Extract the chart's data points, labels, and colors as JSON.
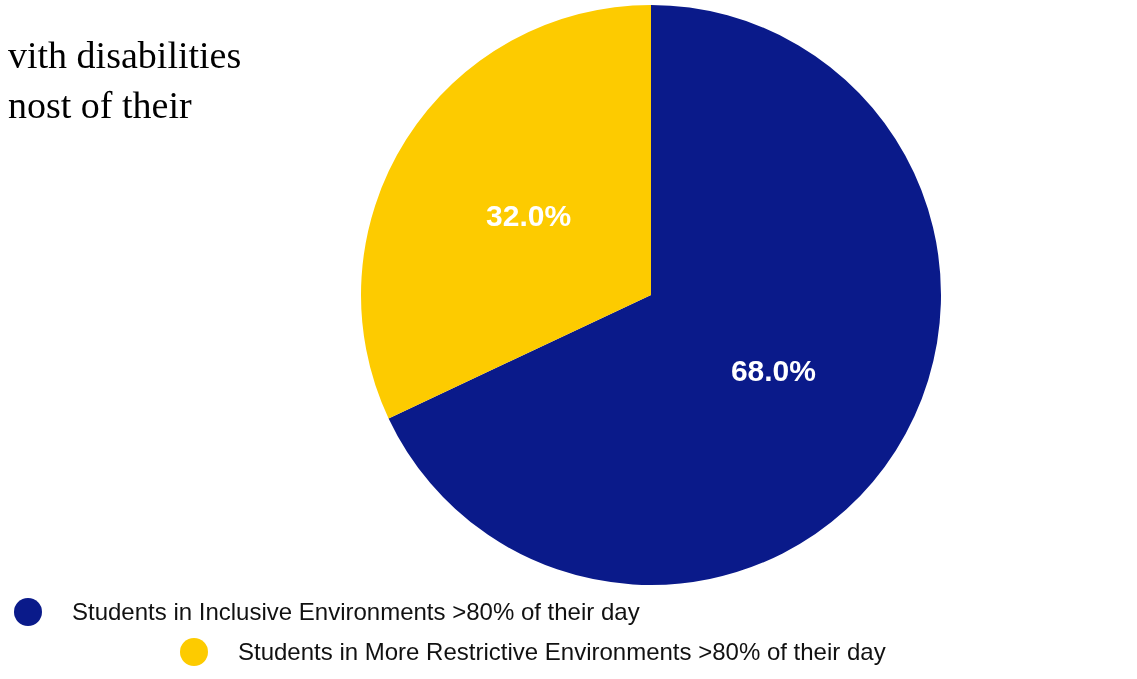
{
  "chart_data": {
    "type": "pie",
    "categories": [
      "Students in Inclusive Environments >80% of their day",
      "Students in More Restrictive Environments >80% of their day"
    ],
    "values": [
      68.0,
      32.0
    ],
    "colors": [
      "#0a1a8a",
      "#fdcb00"
    ],
    "value_labels": [
      "68.0%",
      "32.0%"
    ],
    "legend": "bottom",
    "annotations": [
      "vith disabilities",
      "nost of their"
    ]
  }
}
